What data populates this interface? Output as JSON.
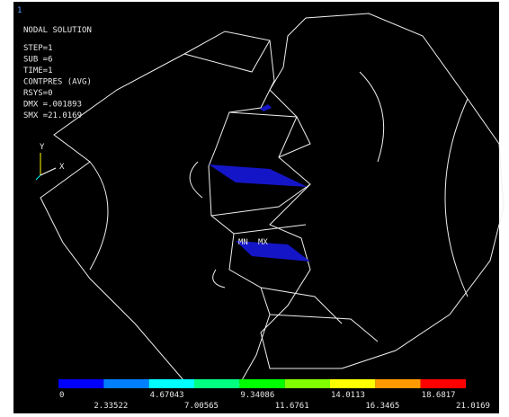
{
  "window_id": "1",
  "info": {
    "title": "NODAL SOLUTION",
    "lines": [
      "STEP=1",
      "SUB =6",
      "TIME=1",
      "CONTPRES (AVG)",
      "RSYS=0",
      "DMX =.001893",
      "SMX =21.0169"
    ]
  },
  "triad": {
    "y": "Y",
    "x": "X"
  },
  "markers": {
    "min": "MN",
    "max": "MX"
  },
  "legend": {
    "colors": [
      "#0000ff",
      "#0080ff",
      "#00ffff",
      "#00ff80",
      "#00ff00",
      "#80ff00",
      "#ffff00",
      "#ff9900",
      "#ff0000"
    ],
    "labels_top": [
      "0",
      "4.67043",
      "9.34086",
      "14.0113",
      "18.6817"
    ],
    "labels_bottom": [
      "2.33522",
      "7.00565",
      "11.6761",
      "16.3465",
      "21.0169"
    ]
  }
}
